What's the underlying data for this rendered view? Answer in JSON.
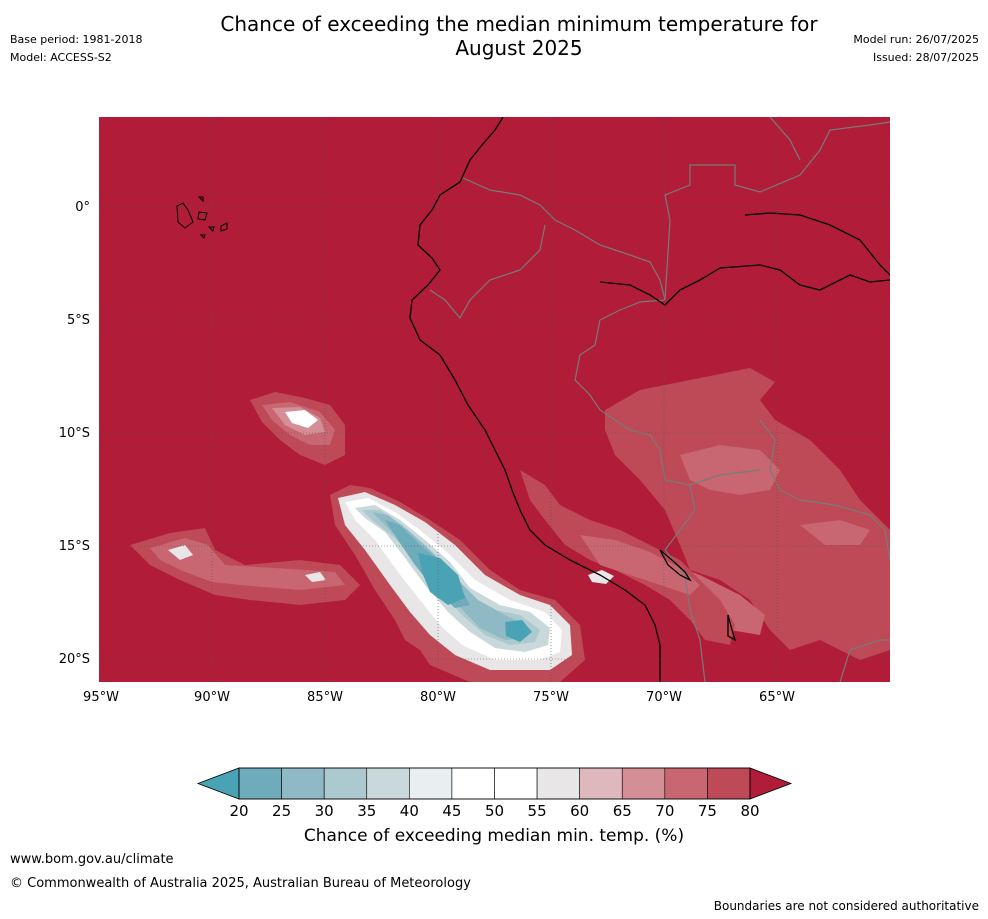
{
  "title_line1": "Chance of exceeding the median minimum temperature for",
  "title_line2": "August 2025",
  "meta_left": {
    "base_period": "Base period: 1981-2018",
    "model": "Model: ACCESS-S2"
  },
  "meta_right": {
    "model_run": "Model run: 26/07/2025",
    "issued": "Issued: 28/07/2025"
  },
  "map": {
    "lon_labels": [
      "95°W",
      "90°W",
      "85°W",
      "80°W",
      "75°W",
      "70°W",
      "65°W"
    ],
    "lat_labels": [
      "0°",
      "5°S",
      "10°S",
      "15°S",
      "20°S"
    ],
    "background_color": "#b11c38"
  },
  "colorbar": {
    "ticks": [
      "20",
      "25",
      "30",
      "35",
      "40",
      "45",
      "50",
      "55",
      "60",
      "65",
      "70",
      "75",
      "80"
    ],
    "colors": [
      "#4aa3b5",
      "#6eabbb",
      "#8fb9c5",
      "#abc9ce",
      "#c9d8da",
      "#e9eef0",
      "#ffffff",
      "#ffffff",
      "#e8e6e6",
      "#dfb8be",
      "#d48e96",
      "#c86672",
      "#bd4a56",
      "#b11c38"
    ],
    "label": "Chance of exceeding median min. temp. (%)"
  },
  "footer": {
    "url": "www.bom.gov.au/climate",
    "copyright": "© Commonwealth of Australia 2025, Australian Bureau of Meteorology",
    "note": "Boundaries are not considered authoritative"
  }
}
